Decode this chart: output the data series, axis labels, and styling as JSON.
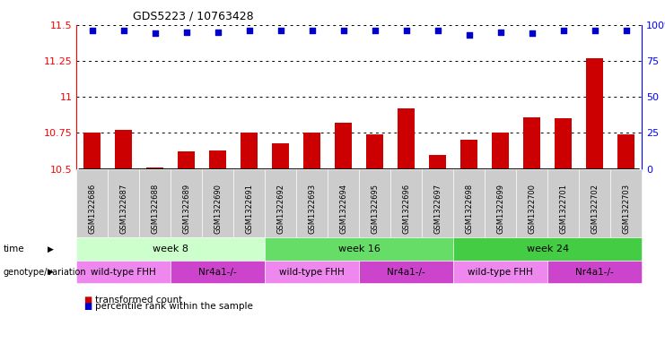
{
  "title": "GDS5223 / 10763428",
  "samples": [
    "GSM1322686",
    "GSM1322687",
    "GSM1322688",
    "GSM1322689",
    "GSM1322690",
    "GSM1322691",
    "GSM1322692",
    "GSM1322693",
    "GSM1322694",
    "GSM1322695",
    "GSM1322696",
    "GSM1322697",
    "GSM1322698",
    "GSM1322699",
    "GSM1322700",
    "GSM1322701",
    "GSM1322702",
    "GSM1322703"
  ],
  "bar_values": [
    10.75,
    10.77,
    10.51,
    10.62,
    10.63,
    10.75,
    10.68,
    10.75,
    10.82,
    10.74,
    10.92,
    10.6,
    10.7,
    10.75,
    10.86,
    10.85,
    11.27,
    10.74
  ],
  "percentile_values": [
    96,
    96,
    94,
    95,
    95,
    96,
    96,
    96,
    96,
    96,
    96,
    96,
    93,
    95,
    94,
    96,
    96,
    96
  ],
  "bar_color": "#cc0000",
  "percentile_color": "#0000cc",
  "ylim_left": [
    10.5,
    11.5
  ],
  "ylim_right": [
    0,
    100
  ],
  "yticks_left": [
    10.5,
    10.75,
    11.0,
    11.25,
    11.5
  ],
  "ytick_labels_left": [
    "10.5",
    "10.75",
    "11",
    "11.25",
    "11.5"
  ],
  "yticks_right": [
    0,
    25,
    50,
    75,
    100
  ],
  "ytick_labels_right": [
    "0",
    "25",
    "50",
    "75",
    "100%"
  ],
  "time_groups": [
    {
      "label": "week 8",
      "start": 0,
      "end": 5,
      "color": "#ccffcc"
    },
    {
      "label": "week 16",
      "start": 6,
      "end": 11,
      "color": "#66dd66"
    },
    {
      "label": "week 24",
      "start": 12,
      "end": 17,
      "color": "#44cc44"
    }
  ],
  "genotype_groups": [
    {
      "label": "wild-type FHH",
      "start": 0,
      "end": 2,
      "color": "#ee88ee"
    },
    {
      "label": "Nr4a1-/-",
      "start": 3,
      "end": 5,
      "color": "#cc44cc"
    },
    {
      "label": "wild-type FHH",
      "start": 6,
      "end": 8,
      "color": "#ee88ee"
    },
    {
      "label": "Nr4a1-/-",
      "start": 9,
      "end": 11,
      "color": "#cc44cc"
    },
    {
      "label": "wild-type FHH",
      "start": 12,
      "end": 14,
      "color": "#ee88ee"
    },
    {
      "label": "Nr4a1-/-",
      "start": 15,
      "end": 17,
      "color": "#cc44cc"
    }
  ],
  "time_label": "time",
  "genotype_label": "genotype/variation",
  "legend_bar_label": "transformed count",
  "legend_pct_label": "percentile rank within the sample",
  "background_color": "#ffffff",
  "bar_bottom": 10.5,
  "sample_bg_color": "#cccccc",
  "bar_width": 0.55
}
